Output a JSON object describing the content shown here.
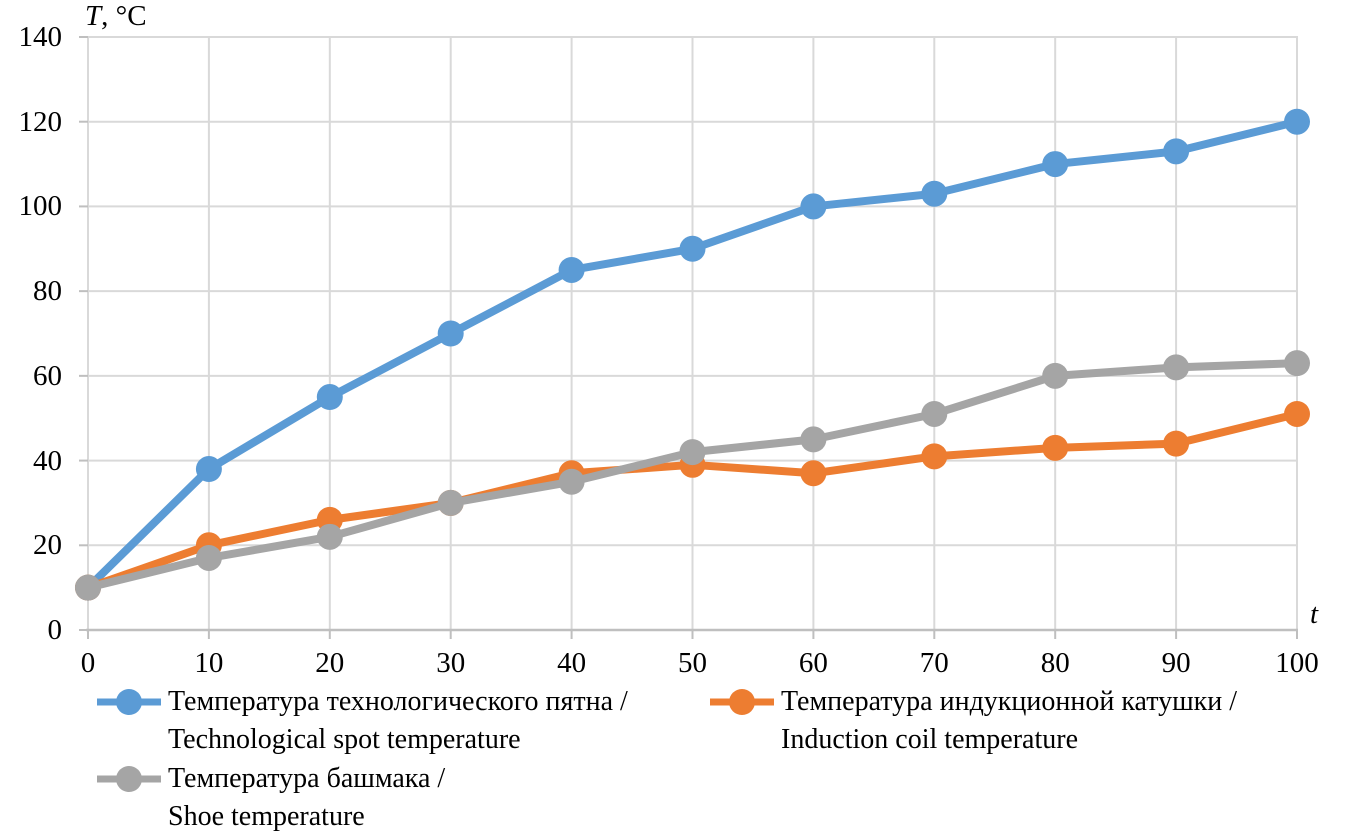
{
  "figure": {
    "y_axis_title": {
      "symbol": "T",
      "unit": ", °C"
    },
    "x_axis_title": "t"
  },
  "colors": {
    "grid": "#D9D9D9",
    "axis_line": "#BFBFBF",
    "text": "#000000",
    "series_blue": "#5B9BD5",
    "series_orange": "#ED7D31",
    "series_gray": "#A5A5A5"
  },
  "chart_data": {
    "type": "line",
    "title": "",
    "xlabel": "t",
    "ylabel": "T, °C",
    "xlim": [
      0,
      100
    ],
    "ylim": [
      0,
      140
    ],
    "grid": true,
    "legend_position": "bottom",
    "x": [
      0,
      10,
      20,
      30,
      40,
      50,
      60,
      70,
      80,
      90,
      100
    ],
    "x_tick_labels": [
      "0",
      "10",
      "20",
      "30",
      "40",
      "50",
      "60",
      "70",
      "80",
      "90",
      "100"
    ],
    "y_ticks": [
      0,
      20,
      40,
      60,
      80,
      100,
      120,
      140
    ],
    "y_tick_labels": [
      "0",
      "20",
      "40",
      "60",
      "80",
      "100",
      "120",
      "140"
    ],
    "series": [
      {
        "name": "Температура технологического пятна / Technological spot temperature",
        "name_lines": [
          "Температура технологического пятна /",
          "Technological spot temperature"
        ],
        "color": "#5B9BD5",
        "values": [
          10,
          38,
          55,
          70,
          85,
          90,
          100,
          103,
          110,
          113,
          120
        ]
      },
      {
        "name": "Температура индукционной катушки / Induction coil temperature",
        "name_lines": [
          "Температура индукционной катушки /",
          "Induction coil temperature"
        ],
        "color": "#ED7D31",
        "values": [
          10,
          20,
          26,
          30,
          37,
          39,
          37,
          41,
          43,
          44,
          51
        ]
      },
      {
        "name": "Температура башмака / Shoe temperature",
        "name_lines": [
          "Температура башмака /",
          "Shoe temperature"
        ],
        "color": "#A5A5A5",
        "values": [
          10,
          17,
          22,
          30,
          35,
          42,
          45,
          51,
          60,
          62,
          63
        ]
      }
    ]
  }
}
